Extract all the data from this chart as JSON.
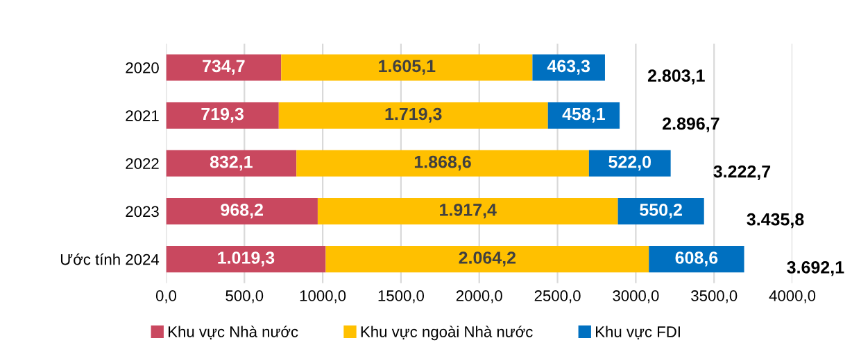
{
  "chart_data": {
    "type": "bar",
    "orientation": "horizontal",
    "stacked": true,
    "categories": [
      "2020",
      "2021",
      "2022",
      "2023",
      "Ước tính 2024"
    ],
    "series": [
      {
        "name": "Khu vực Nhà nước",
        "color": "#c9485f",
        "values": [
          734.7,
          719.3,
          832.1,
          968.2,
          1019.3
        ],
        "value_labels": [
          "734,7",
          "719,3",
          "832,1",
          "968,2",
          "1.019,3"
        ]
      },
      {
        "name": "Khu vực ngoài Nhà nước",
        "color": "#ffc000",
        "values": [
          1605.1,
          1719.3,
          1868.6,
          1917.4,
          2064.2
        ],
        "value_labels": [
          "1.605,1",
          "1.719,3",
          "1.868,6",
          "1.917,4",
          "2.064,2"
        ]
      },
      {
        "name": "Khu vực FDI",
        "color": "#0070c0",
        "values": [
          463.3,
          458.1,
          522.0,
          550.2,
          608.6
        ],
        "value_labels": [
          "463,3",
          "458,1",
          "522,0",
          "550,2",
          "608,6"
        ]
      }
    ],
    "totals": [
      "2.803,1",
      "2.896,7",
      "3.222,7",
      "3.435,8",
      "3.692,1"
    ],
    "xlim": [
      0,
      4000
    ],
    "xticks": [
      {
        "value": 0,
        "label": "0,0"
      },
      {
        "value": 500,
        "label": "500,0"
      },
      {
        "value": 1000,
        "label": "1000,0"
      },
      {
        "value": 1500,
        "label": "1500,0"
      },
      {
        "value": 2000,
        "label": "2000,0"
      },
      {
        "value": 2500,
        "label": "2500,0"
      },
      {
        "value": 3000,
        "label": "3000,0"
      },
      {
        "value": 3500,
        "label": "3500,0"
      },
      {
        "value": 4000,
        "label": "4000,0"
      }
    ],
    "grid": "x",
    "legend": "bottom"
  }
}
